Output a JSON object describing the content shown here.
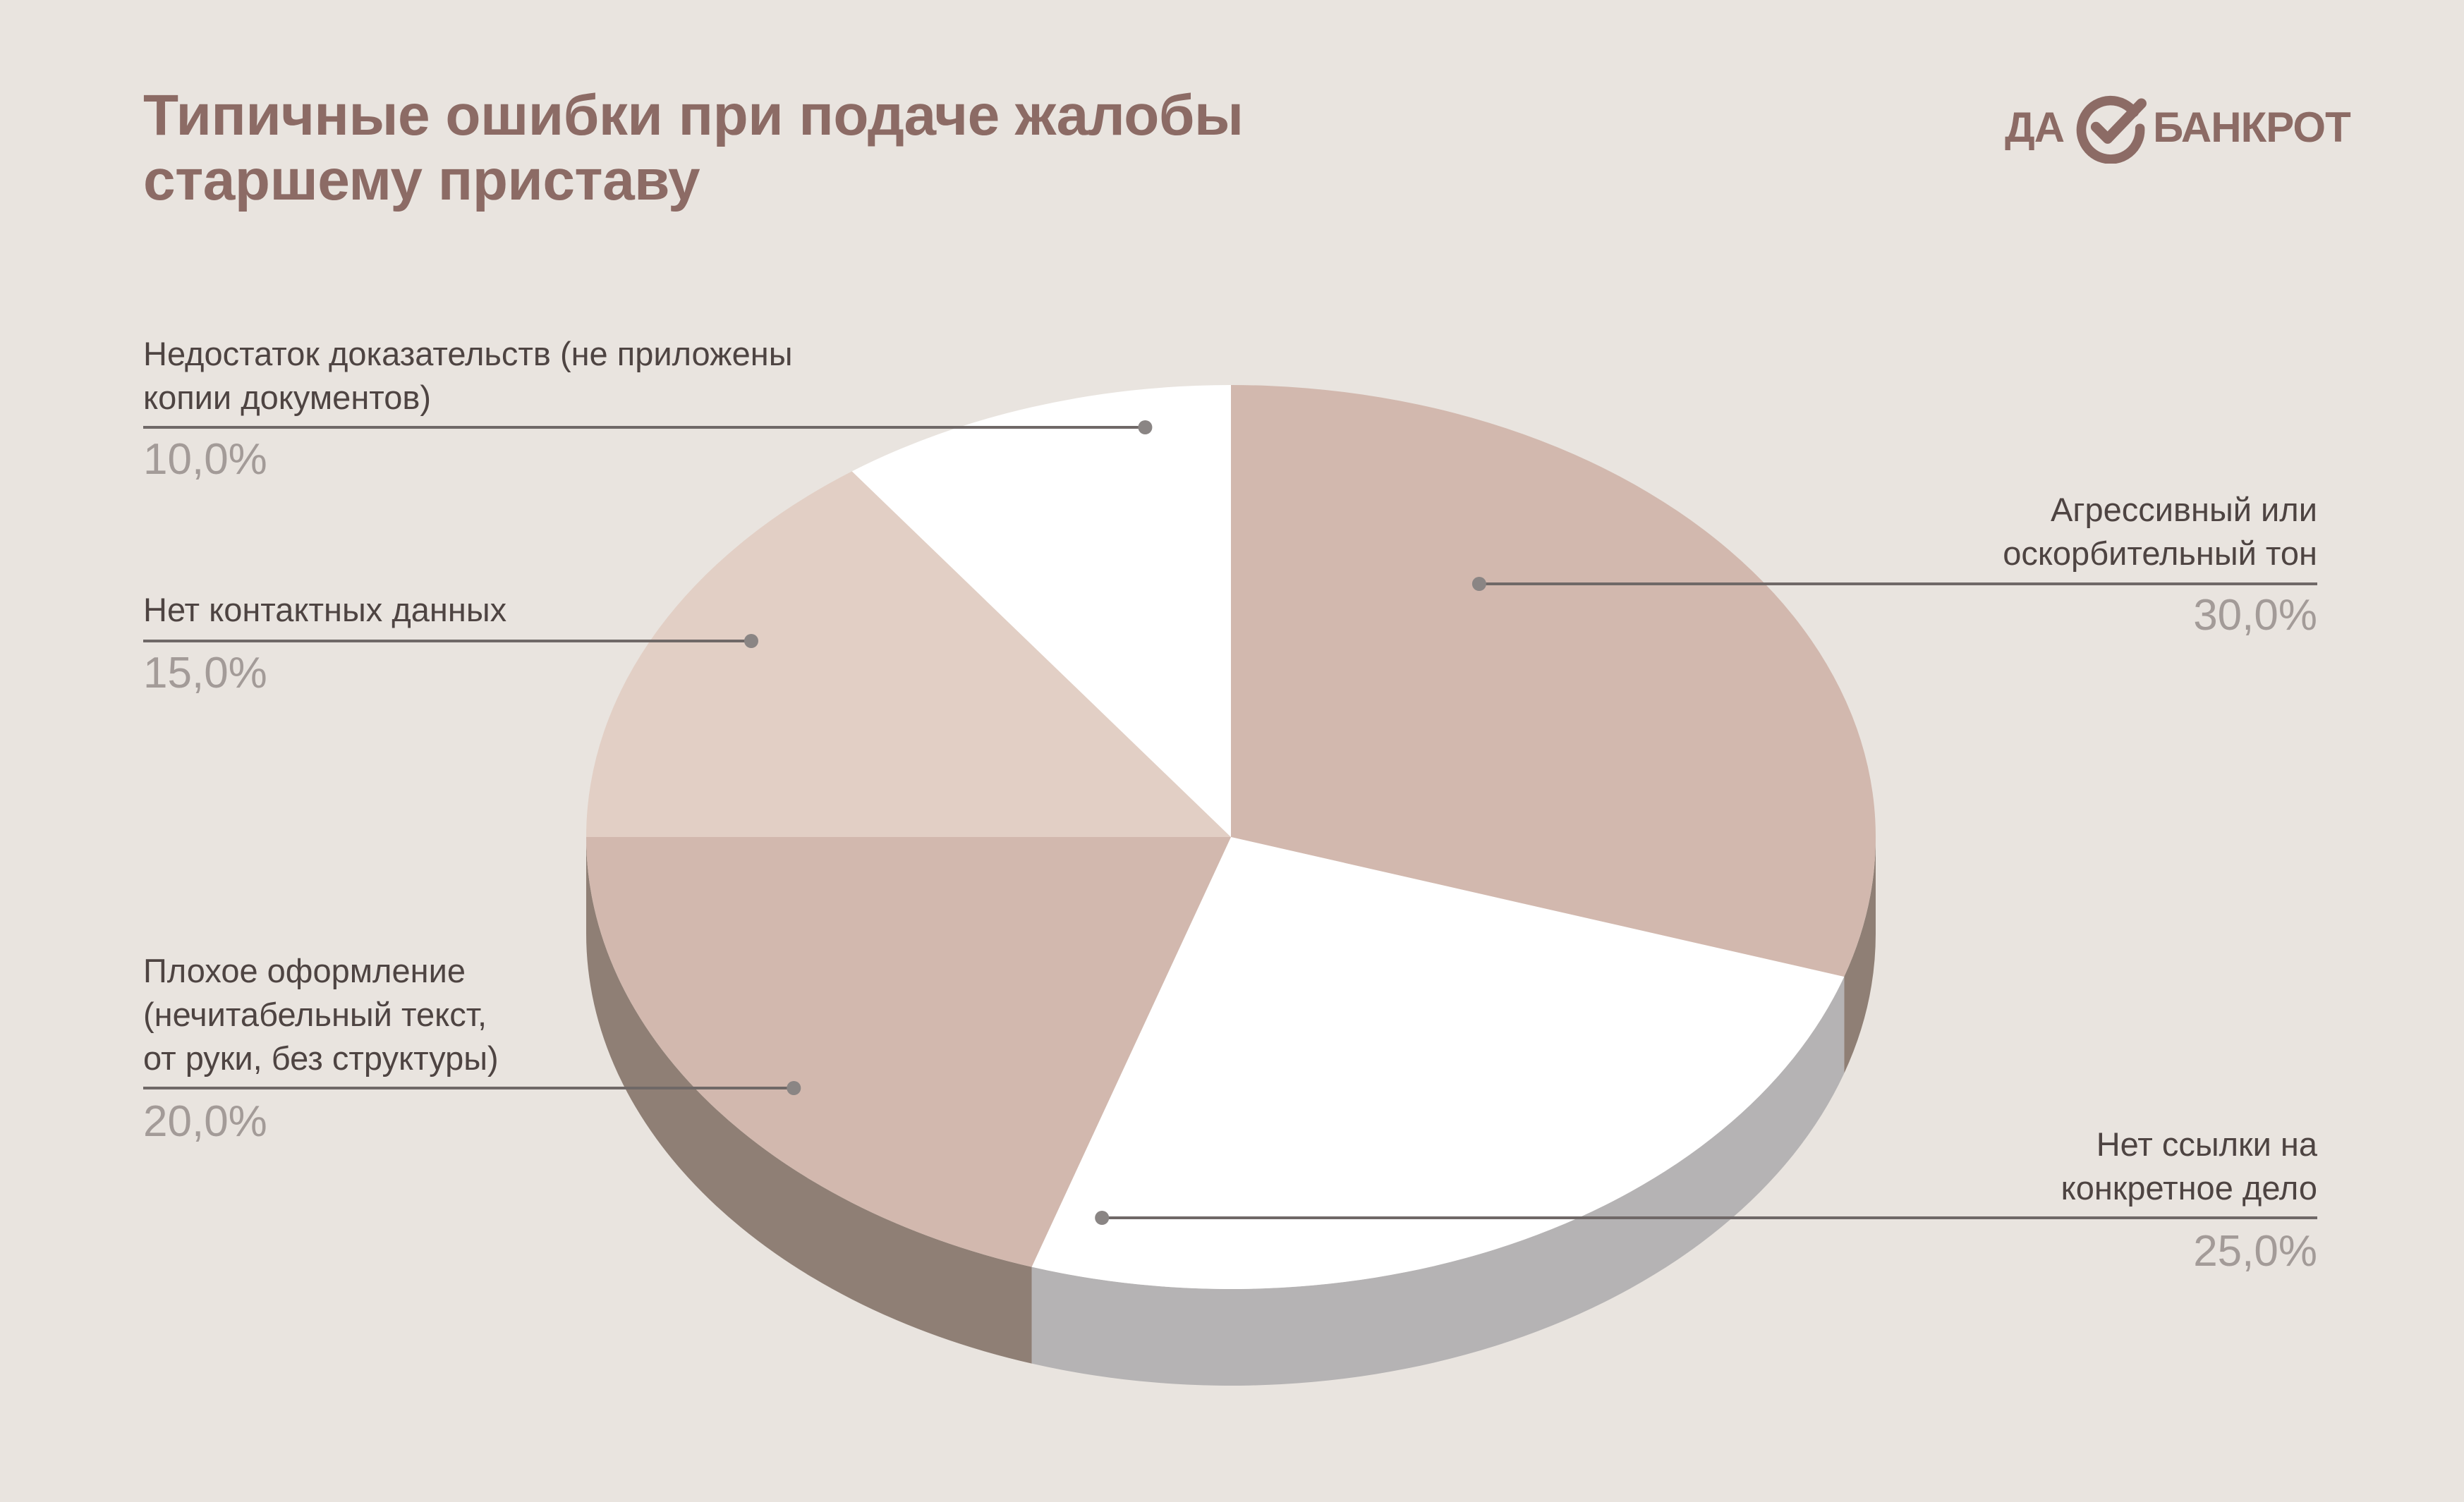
{
  "title_lines": [
    "Типичные ошибки при подаче жалобы",
    "старшему приставу"
  ],
  "logo": {
    "left": "ДА",
    "right": "БАНКРОТ",
    "icon": "check-circle-icon"
  },
  "colors": {
    "background": "#e9e4df",
    "title": "#8c6b65",
    "slice_dark": "#d2b8ae",
    "slice_light": "#e2cfc5",
    "slice_white": "#ffffff",
    "side_dark": "#8f7f75",
    "side_gray": "#b5b3b4",
    "leader": "#6f6867"
  },
  "chart_data": {
    "type": "pie",
    "style": "3d",
    "unit": "%",
    "slices": [
      {
        "label_lines": [
          "Агрессивный или",
          "оскорбительный тон"
        ],
        "value": 30.0,
        "display": "30,0%",
        "color": "#d2b8ae"
      },
      {
        "label_lines": [
          "Нет ссылки на",
          "конкретное дело"
        ],
        "value": 25.0,
        "display": "25,0%",
        "color": "#ffffff"
      },
      {
        "label_lines": [
          "Плохое оформление",
          "(нечитабельный текст,",
          "от руки, без структуры)"
        ],
        "value": 20.0,
        "display": "20,0%",
        "color": "#d2b8ae"
      },
      {
        "label_lines": [
          "Нет контактных данных"
        ],
        "value": 15.0,
        "display": "15,0%",
        "color": "#e2cfc5"
      },
      {
        "label_lines": [
          "Недостаток доказательств (не приложены",
          "копии документов)"
        ],
        "value": 10.0,
        "display": "10,0%",
        "color": "#ffffff"
      }
    ]
  }
}
